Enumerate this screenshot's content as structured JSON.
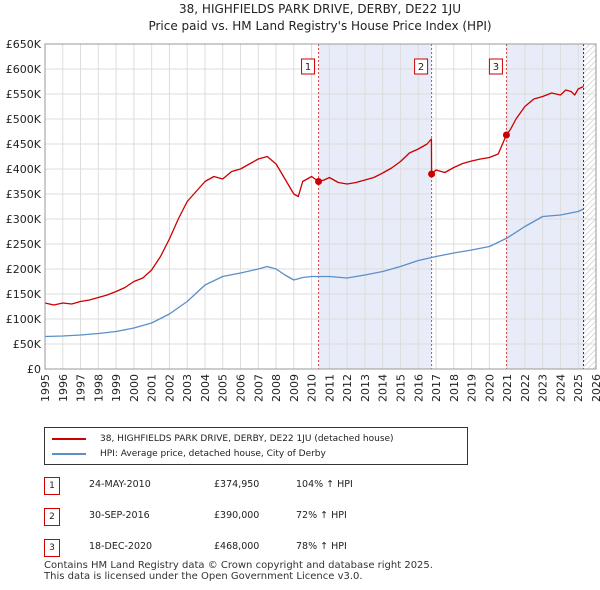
{
  "chart_data": {
    "type": "line",
    "title": "38, HIGHFIELDS PARK DRIVE, DERBY, DE22 1JU",
    "subtitle": "Price paid vs. HM Land Registry's House Price Index (HPI)",
    "xlim": [
      1995,
      2026
    ],
    "ylim": [
      0,
      650000
    ],
    "y_ticks": [
      0,
      50000,
      100000,
      150000,
      200000,
      250000,
      300000,
      350000,
      400000,
      450000,
      500000,
      550000,
      600000,
      650000
    ],
    "y_tick_labels": [
      "£0",
      "£50K",
      "£100K",
      "£150K",
      "£200K",
      "£250K",
      "£300K",
      "£350K",
      "£400K",
      "£450K",
      "£500K",
      "£550K",
      "£600K",
      "£650K"
    ],
    "x_ticks": [
      1995,
      1996,
      1997,
      1998,
      1999,
      2000,
      2001,
      2002,
      2003,
      2004,
      2005,
      2006,
      2007,
      2008,
      2009,
      2010,
      2011,
      2012,
      2013,
      2014,
      2015,
      2016,
      2017,
      2018,
      2019,
      2020,
      2021,
      2022,
      2023,
      2024,
      2025,
      2026
    ],
    "grid": true,
    "shaded_ranges": [
      [
        2010.39,
        2016.75
      ],
      [
        2020.96,
        2025.3
      ]
    ],
    "hatched_from": 2025.3,
    "series": [
      {
        "name": "38, HIGHFIELDS PARK DRIVE, DERBY, DE22 1JU (detached house)",
        "color": "#cc0000",
        "x": [
          1995,
          1995.5,
          1996,
          1996.5,
          1997,
          1997.5,
          1998,
          1998.5,
          1999,
          1999.5,
          2000,
          2000.5,
          2001,
          2001.5,
          2002,
          2002.5,
          2003,
          2003.5,
          2004,
          2004.5,
          2005,
          2005.5,
          2006,
          2006.5,
          2007,
          2007.5,
          2008,
          2008.5,
          2009,
          2009.25,
          2009.5,
          2010,
          2010.39,
          2010.7,
          2011,
          2011.5,
          2012,
          2012.5,
          2013,
          2013.5,
          2014,
          2014.5,
          2015,
          2015.5,
          2016,
          2016.5,
          2016.74,
          2016.75,
          2017,
          2017.5,
          2018,
          2018.5,
          2019,
          2019.5,
          2020,
          2020.5,
          2020.96,
          2021.2,
          2021.5,
          2022,
          2022.5,
          2023,
          2023.5,
          2024,
          2024.3,
          2024.6,
          2024.8,
          2025,
          2025.3
        ],
        "values": [
          132000,
          128000,
          132000,
          130000,
          135000,
          138000,
          143000,
          148000,
          155000,
          163000,
          175000,
          182000,
          198000,
          225000,
          260000,
          300000,
          335000,
          355000,
          375000,
          385000,
          380000,
          395000,
          400000,
          410000,
          420000,
          425000,
          410000,
          380000,
          350000,
          345000,
          375000,
          385000,
          374950,
          378000,
          383000,
          373000,
          370000,
          373000,
          378000,
          383000,
          392000,
          402000,
          415000,
          432000,
          440000,
          450000,
          460000,
          390000,
          398000,
          393000,
          403000,
          411000,
          416000,
          420000,
          423000,
          430000,
          468000,
          480000,
          500000,
          525000,
          540000,
          545000,
          552000,
          548000,
          558000,
          555000,
          548000,
          560000,
          565000
        ]
      },
      {
        "name": "HPI: Average price, detached house, City of Derby",
        "color": "#5b8fc7",
        "x": [
          1995,
          1996,
          1997,
          1998,
          1999,
          2000,
          2001,
          2002,
          2003,
          2004,
          2005,
          2006,
          2007,
          2007.5,
          2008,
          2008.5,
          2009,
          2009.5,
          2010,
          2011,
          2012,
          2013,
          2014,
          2015,
          2016,
          2017,
          2018,
          2019,
          2020,
          2021,
          2022,
          2023,
          2024,
          2025,
          2025.3
        ],
        "values": [
          65000,
          66000,
          68000,
          71000,
          75000,
          82000,
          92000,
          110000,
          135000,
          168000,
          185000,
          192000,
          200000,
          205000,
          200000,
          188000,
          178000,
          183000,
          185000,
          185000,
          182000,
          188000,
          195000,
          205000,
          217000,
          225000,
          232000,
          238000,
          245000,
          262000,
          285000,
          305000,
          308000,
          315000,
          320000
        ]
      }
    ],
    "sale_markers": [
      {
        "label": "1",
        "x": 2010.39,
        "y": 374950
      },
      {
        "label": "2",
        "x": 2016.75,
        "y": 390000
      },
      {
        "label": "3",
        "x": 2020.96,
        "y": 468000
      }
    ]
  },
  "legend": {
    "items": [
      {
        "label": "38, HIGHFIELDS PARK DRIVE, DERBY, DE22 1JU (detached house)",
        "color": "#cc0000"
      },
      {
        "label": "HPI: Average price, detached house, City of Derby",
        "color": "#5b8fc7"
      }
    ]
  },
  "sales": [
    {
      "num": "1",
      "date": "24-MAY-2010",
      "price": "£374,950",
      "hpi": "104% ↑ HPI"
    },
    {
      "num": "2",
      "date": "30-SEP-2016",
      "price": "£390,000",
      "hpi": "72% ↑ HPI"
    },
    {
      "num": "3",
      "date": "18-DEC-2020",
      "price": "£468,000",
      "hpi": "78% ↑ HPI"
    }
  ],
  "footer": {
    "line1": "Contains HM Land Registry data © Crown copyright and database right 2025.",
    "line2": "This data is licensed under the Open Government Licence v3.0."
  }
}
